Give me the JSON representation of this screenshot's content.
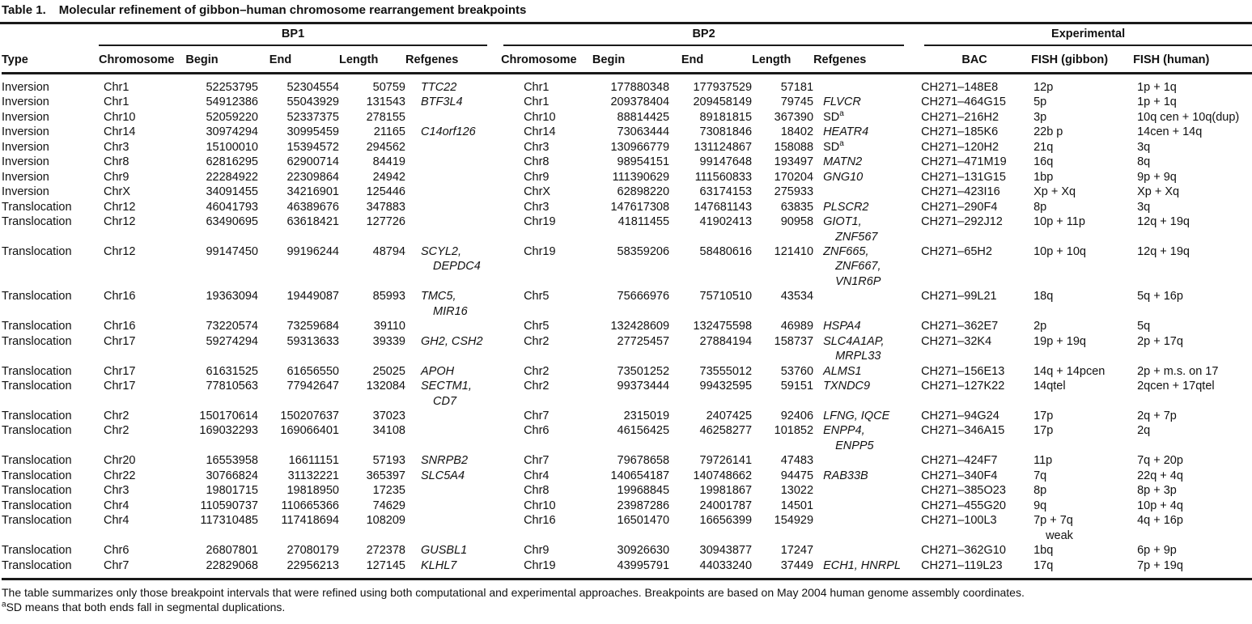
{
  "title": {
    "label": "Table 1.",
    "text": "Molecular refinement of gibbon–human chromosome rearrangement breakpoints"
  },
  "table": {
    "groups": {
      "bp1": "BP1",
      "bp2": "BP2",
      "experimental": "Experimental"
    },
    "columns": [
      "Type",
      "Chromosome",
      "Begin",
      "End",
      "Length",
      "Refgenes",
      "Chromosome",
      "Begin",
      "End",
      "Length",
      "Refgenes",
      "BAC",
      "FISH (gibbon)",
      "FISH (human)"
    ],
    "rows": [
      {
        "type": "Inversion",
        "bp1": {
          "chromosome": "Chr1",
          "begin": 52253795,
          "end": 52304554,
          "length": 50759,
          "refgenes": [
            "TTC22"
          ]
        },
        "bp2": {
          "chromosome": "Chr1",
          "begin": 177880348,
          "end": 177937529,
          "length": 57181,
          "refgenes": []
        },
        "experimental": {
          "bac": "CH271–148E8",
          "fish_gibbon": "12p",
          "fish_human": "1p + 1q"
        }
      },
      {
        "type": "Inversion",
        "bp1": {
          "chromosome": "Chr1",
          "begin": 54912386,
          "end": 55043929,
          "length": 131543,
          "refgenes": [
            "BTF3L4"
          ]
        },
        "bp2": {
          "chromosome": "Chr1",
          "begin": 209378404,
          "end": 209458149,
          "length": 79745,
          "refgenes": [
            "FLVCR"
          ]
        },
        "experimental": {
          "bac": "CH271–464G15",
          "fish_gibbon": "5p",
          "fish_human": "1p + 1q"
        }
      },
      {
        "type": "Inversion",
        "bp1": {
          "chromosome": "Chr10",
          "begin": 52059220,
          "end": 52337375,
          "length": 278155,
          "refgenes": []
        },
        "bp2": {
          "chromosome": "Chr10",
          "begin": 88814425,
          "end": 89181815,
          "length": 367390,
          "refgenes": [
            "SD^a"
          ]
        },
        "experimental": {
          "bac": "CH271–216H2",
          "fish_gibbon": "3p",
          "fish_human": "10q cen + 10q(dup)"
        }
      },
      {
        "type": "Inversion",
        "bp1": {
          "chromosome": "Chr14",
          "begin": 30974294,
          "end": 30995459,
          "length": 21165,
          "refgenes": [
            "C14orf126"
          ]
        },
        "bp2": {
          "chromosome": "Chr14",
          "begin": 73063444,
          "end": 73081846,
          "length": 18402,
          "refgenes": [
            "HEATR4"
          ]
        },
        "experimental": {
          "bac": "CH271–185K6",
          "fish_gibbon": "22b p",
          "fish_human": "14cen + 14q"
        }
      },
      {
        "type": "Inversion",
        "bp1": {
          "chromosome": "Chr3",
          "begin": 15100010,
          "end": 15394572,
          "length": 294562,
          "refgenes": []
        },
        "bp2": {
          "chromosome": "Chr3",
          "begin": 130966779,
          "end": 131124867,
          "length": 158088,
          "refgenes": [
            "SD^a"
          ]
        },
        "experimental": {
          "bac": "CH271–120H2",
          "fish_gibbon": "21q",
          "fish_human": "3q"
        }
      },
      {
        "type": "Inversion",
        "bp1": {
          "chromosome": "Chr8",
          "begin": 62816295,
          "end": 62900714,
          "length": 84419,
          "refgenes": []
        },
        "bp2": {
          "chromosome": "Chr8",
          "begin": 98954151,
          "end": 99147648,
          "length": 193497,
          "refgenes": [
            "MATN2"
          ]
        },
        "experimental": {
          "bac": "CH271–471M19",
          "fish_gibbon": "16q",
          "fish_human": "8q"
        }
      },
      {
        "type": "Inversion",
        "bp1": {
          "chromosome": "Chr9",
          "begin": 22284922,
          "end": 22309864,
          "length": 24942,
          "refgenes": []
        },
        "bp2": {
          "chromosome": "Chr9",
          "begin": 111390629,
          "end": 111560833,
          "length": 170204,
          "refgenes": [
            "GNG10"
          ]
        },
        "experimental": {
          "bac": "CH271–131G15",
          "fish_gibbon": "1bp",
          "fish_human": "9p + 9q"
        }
      },
      {
        "type": "Inversion",
        "bp1": {
          "chromosome": "ChrX",
          "begin": 34091455,
          "end": 34216901,
          "length": 125446,
          "refgenes": []
        },
        "bp2": {
          "chromosome": "ChrX",
          "begin": 62898220,
          "end": 63174153,
          "length": 275933,
          "refgenes": []
        },
        "experimental": {
          "bac": "CH271–423I16",
          "fish_gibbon": "Xp + Xq",
          "fish_human": "Xp + Xq"
        }
      },
      {
        "type": "Translocation",
        "bp1": {
          "chromosome": "Chr12",
          "begin": 46041793,
          "end": 46389676,
          "length": 347883,
          "refgenes": []
        },
        "bp2": {
          "chromosome": "Chr3",
          "begin": 147617308,
          "end": 147681143,
          "length": 63835,
          "refgenes": [
            "PLSCR2"
          ]
        },
        "experimental": {
          "bac": "CH271–290F4",
          "fish_gibbon": "8p",
          "fish_human": "3q"
        }
      },
      {
        "type": "Translocation",
        "bp1": {
          "chromosome": "Chr12",
          "begin": 63490695,
          "end": 63618421,
          "length": 127726,
          "refgenes": []
        },
        "bp2": {
          "chromosome": "Chr19",
          "begin": 41811455,
          "end": 41902413,
          "length": 90958,
          "refgenes": [
            "GIOT1,",
            "ZNF567"
          ]
        },
        "experimental": {
          "bac": "CH271–292J12",
          "fish_gibbon": "10p + 11p",
          "fish_human": "12q + 19q"
        }
      },
      {
        "type": "Translocation",
        "bp1": {
          "chromosome": "Chr12",
          "begin": 99147450,
          "end": 99196244,
          "length": 48794,
          "refgenes": [
            "SCYL2,",
            "DEPDC4"
          ]
        },
        "bp2": {
          "chromosome": "Chr19",
          "begin": 58359206,
          "end": 58480616,
          "length": 121410,
          "refgenes": [
            "ZNF665,",
            "ZNF667,",
            "VN1R6P"
          ]
        },
        "experimental": {
          "bac": "CH271–65H2",
          "fish_gibbon": "10p + 10q",
          "fish_human": "12q + 19q"
        }
      },
      {
        "type": "Translocation",
        "bp1": {
          "chromosome": "Chr16",
          "begin": 19363094,
          "end": 19449087,
          "length": 85993,
          "refgenes": [
            "TMC5,",
            "MIR16"
          ]
        },
        "bp2": {
          "chromosome": "Chr5",
          "begin": 75666976,
          "end": 75710510,
          "length": 43534,
          "refgenes": []
        },
        "experimental": {
          "bac": "CH271–99L21",
          "fish_gibbon": "18q",
          "fish_human": "5q + 16p"
        }
      },
      {
        "type": "Translocation",
        "bp1": {
          "chromosome": "Chr16",
          "begin": 73220574,
          "end": 73259684,
          "length": 39110,
          "refgenes": []
        },
        "bp2": {
          "chromosome": "Chr5",
          "begin": 132428609,
          "end": 132475598,
          "length": 46989,
          "refgenes": [
            "HSPA4"
          ]
        },
        "experimental": {
          "bac": "CH271–362E7",
          "fish_gibbon": "2p",
          "fish_human": "5q"
        }
      },
      {
        "type": "Translocation",
        "bp1": {
          "chromosome": "Chr17",
          "begin": 59274294,
          "end": 59313633,
          "length": 39339,
          "refgenes": [
            "GH2, CSH2"
          ]
        },
        "bp2": {
          "chromosome": "Chr2",
          "begin": 27725457,
          "end": 27884194,
          "length": 158737,
          "refgenes": [
            "SLC4A1AP,",
            "MRPL33"
          ]
        },
        "experimental": {
          "bac": "CH271–32K4",
          "fish_gibbon": "19p + 19q",
          "fish_human": "2p + 17q"
        }
      },
      {
        "type": "Translocation",
        "bp1": {
          "chromosome": "Chr17",
          "begin": 61631525,
          "end": 61656550,
          "length": 25025,
          "refgenes": [
            "APOH"
          ]
        },
        "bp2": {
          "chromosome": "Chr2",
          "begin": 73501252,
          "end": 73555012,
          "length": 53760,
          "refgenes": [
            "ALMS1"
          ]
        },
        "experimental": {
          "bac": "CH271–156E13",
          "fish_gibbon": "14q + 14pcen",
          "fish_human": "2p + m.s. on 17"
        }
      },
      {
        "type": "Translocation",
        "bp1": {
          "chromosome": "Chr17",
          "begin": 77810563,
          "end": 77942647,
          "length": 132084,
          "refgenes": [
            "SECTM1,",
            "CD7"
          ]
        },
        "bp2": {
          "chromosome": "Chr2",
          "begin": 99373444,
          "end": 99432595,
          "length": 59151,
          "refgenes": [
            "TXNDC9"
          ]
        },
        "experimental": {
          "bac": "CH271–127K22",
          "fish_gibbon": "14qtel",
          "fish_human": "2qcen + 17qtel"
        }
      },
      {
        "type": "Translocation",
        "bp1": {
          "chromosome": "Chr2",
          "begin": 150170614,
          "end": 150207637,
          "length": 37023,
          "refgenes": []
        },
        "bp2": {
          "chromosome": "Chr7",
          "begin": 2315019,
          "end": 2407425,
          "length": 92406,
          "refgenes": [
            "LFNG, IQCE"
          ]
        },
        "experimental": {
          "bac": "CH271–94G24",
          "fish_gibbon": "17p",
          "fish_human": "2q + 7p"
        }
      },
      {
        "type": "Translocation",
        "bp1": {
          "chromosome": "Chr2",
          "begin": 169032293,
          "end": 169066401,
          "length": 34108,
          "refgenes": []
        },
        "bp2": {
          "chromosome": "Chr6",
          "begin": 46156425,
          "end": 46258277,
          "length": 101852,
          "refgenes": [
            "ENPP4,",
            "ENPP5"
          ]
        },
        "experimental": {
          "bac": "CH271–346A15",
          "fish_gibbon": "17p",
          "fish_human": "2q"
        }
      },
      {
        "type": "Translocation",
        "bp1": {
          "chromosome": "Chr20",
          "begin": 16553958,
          "end": 16611151,
          "length": 57193,
          "refgenes": [
            "SNRPB2"
          ]
        },
        "bp2": {
          "chromosome": "Chr7",
          "begin": 79678658,
          "end": 79726141,
          "length": 47483,
          "refgenes": []
        },
        "experimental": {
          "bac": "CH271–424F7",
          "fish_gibbon": "11p",
          "fish_human": "7q + 20p"
        }
      },
      {
        "type": "Translocation",
        "bp1": {
          "chromosome": "Chr22",
          "begin": 30766824,
          "end": 31132221,
          "length": 365397,
          "refgenes": [
            "SLC5A4"
          ]
        },
        "bp2": {
          "chromosome": "Chr4",
          "begin": 140654187,
          "end": 140748662,
          "length": 94475,
          "refgenes": [
            "RAB33B"
          ]
        },
        "experimental": {
          "bac": "CH271–340F4",
          "fish_gibbon": "7q",
          "fish_human": "22q + 4q"
        }
      },
      {
        "type": "Translocation",
        "bp1": {
          "chromosome": "Chr3",
          "begin": 19801715,
          "end": 19818950,
          "length": 17235,
          "refgenes": []
        },
        "bp2": {
          "chromosome": "Chr8",
          "begin": 19968845,
          "end": 19981867,
          "length": 13022,
          "refgenes": []
        },
        "experimental": {
          "bac": "CH271–385O23",
          "fish_gibbon": "8p",
          "fish_human": "8p + 3p"
        }
      },
      {
        "type": "Translocation",
        "bp1": {
          "chromosome": "Chr4",
          "begin": 110590737,
          "end": 110665366,
          "length": 74629,
          "refgenes": []
        },
        "bp2": {
          "chromosome": "Chr10",
          "begin": 23987286,
          "end": 24001787,
          "length": 14501,
          "refgenes": []
        },
        "experimental": {
          "bac": "CH271–455G20",
          "fish_gibbon": "9q",
          "fish_human": "10p + 4q"
        }
      },
      {
        "type": "Translocation",
        "bp1": {
          "chromosome": "Chr4",
          "begin": 117310485,
          "end": 117418694,
          "length": 108209,
          "refgenes": []
        },
        "bp2": {
          "chromosome": "Chr16",
          "begin": 16501470,
          "end": 16656399,
          "length": 154929,
          "refgenes": []
        },
        "experimental": {
          "bac": "CH271–100L3",
          "fish_gibbon": [
            "7p + 7q",
            "weak"
          ],
          "fish_human": "4q + 16p"
        }
      },
      {
        "type": "Translocation",
        "bp1": {
          "chromosome": "Chr6",
          "begin": 26807801,
          "end": 27080179,
          "length": 272378,
          "refgenes": [
            "GUSBL1"
          ]
        },
        "bp2": {
          "chromosome": "Chr9",
          "begin": 30926630,
          "end": 30943877,
          "length": 17247,
          "refgenes": []
        },
        "experimental": {
          "bac": "CH271–362G10",
          "fish_gibbon": "1bq",
          "fish_human": "6p + 9p"
        }
      },
      {
        "type": "Translocation",
        "bp1": {
          "chromosome": "Chr7",
          "begin": 22829068,
          "end": 22956213,
          "length": 127145,
          "refgenes": [
            "KLHL7"
          ]
        },
        "bp2": {
          "chromosome": "Chr19",
          "begin": 43995791,
          "end": 44033240,
          "length": 37449,
          "refgenes": [
            "ECH1, HNRPL"
          ]
        },
        "experimental": {
          "bac": "CH271–119L23",
          "fish_gibbon": "17q",
          "fish_human": "7p + 19q"
        }
      }
    ]
  },
  "footnotes": [
    "The table summarizes only those breakpoint intervals that were refined using both computational and experimental approaches. Breakpoints are based on May 2004 human genome assembly coordinates.",
    "^aSD means that both ends fall in segmental duplications."
  ]
}
